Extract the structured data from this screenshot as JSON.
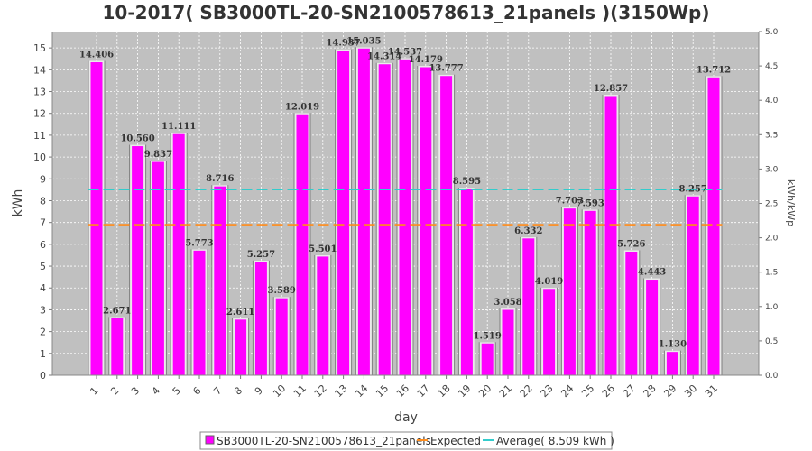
{
  "chart_data": {
    "type": "bar",
    "title": "10-2017( SB3000TL-20-SN2100578613_21panels )(3150Wp)",
    "xlabel": "day",
    "ylabel": "kWh",
    "ylabel_right": "kWh/kWp",
    "ylim": [
      0,
      15.75
    ],
    "ylim_right": [
      0,
      5.0
    ],
    "yticks": [
      "0",
      "1",
      "2",
      "3",
      "4",
      "5",
      "6",
      "7",
      "8",
      "9",
      "10",
      "11",
      "12",
      "13",
      "14",
      "15"
    ],
    "yticks_right": [
      "0.0",
      "0.5",
      "1.0",
      "1.5",
      "2.0",
      "2.5",
      "3.0",
      "3.5",
      "4.0",
      "4.5",
      "5.0"
    ],
    "categories": [
      "1",
      "2",
      "3",
      "4",
      "5",
      "6",
      "7",
      "8",
      "9",
      "10",
      "11",
      "12",
      "13",
      "14",
      "15",
      "16",
      "17",
      "18",
      "19",
      "20",
      "21",
      "22",
      "23",
      "24",
      "25",
      "26",
      "27",
      "28",
      "29",
      "30",
      "31"
    ],
    "series": [
      {
        "name": "SB3000TL-20-SN2100578613_21panels",
        "color": "#ff00ff",
        "values": [
          14.406,
          2.671,
          10.56,
          9.837,
          11.111,
          5.773,
          8.716,
          2.611,
          5.257,
          3.589,
          12.019,
          5.501,
          14.937,
          15.035,
          14.314,
          14.537,
          14.179,
          13.777,
          8.595,
          1.519,
          3.058,
          6.332,
          4.019,
          7.703,
          7.593,
          12.857,
          5.726,
          4.443,
          1.13,
          8.257,
          13.712
        ],
        "labels": [
          "14.406",
          "2.671",
          "10.560",
          "9.837",
          "11.111",
          "5.773",
          "8.716",
          "2.611",
          "5.257",
          "3.589",
          "12.019",
          "5.501",
          "14.937",
          "15.035",
          "14.314",
          "14.537",
          "14.179",
          "13.777",
          "8.595",
          "1.519",
          "3.058",
          "6.332",
          "4.019",
          "7.703",
          "7.593",
          "12.857",
          "5.726",
          "4.443",
          "1.130",
          "8.257",
          "13.712"
        ]
      }
    ],
    "lines": [
      {
        "name": "Expected",
        "value": 6.9,
        "color": "#ff8c1a"
      },
      {
        "name": "Average( 8.509 kWh )",
        "value": 8.509,
        "color": "#33cccc"
      }
    ],
    "grid": true,
    "legend_position": "bottom"
  }
}
